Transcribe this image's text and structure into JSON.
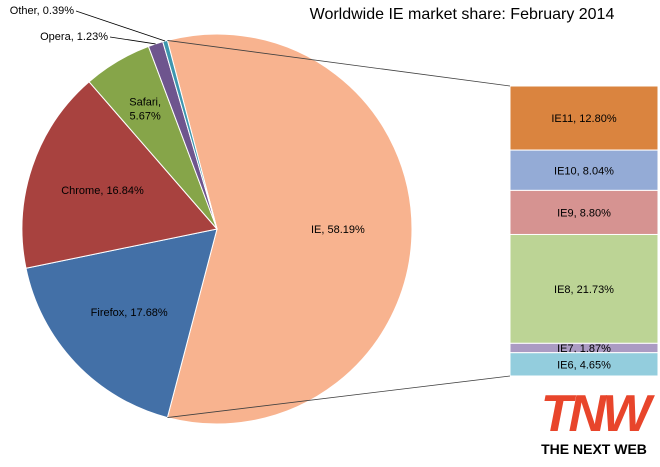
{
  "chart_data": {
    "type": "pie",
    "title": "Worldwide IE market share: February 2014",
    "slices": [
      {
        "label": "IE, 58.19%",
        "name": "IE",
        "value": 58.19,
        "color": "#F8B38F"
      },
      {
        "label": "Firefox, 17.68%",
        "name": "Firefox",
        "value": 17.68,
        "color": "#4370A7"
      },
      {
        "label": "Chrome, 16.84%",
        "name": "Chrome",
        "value": 16.84,
        "color": "#A8423F"
      },
      {
        "label": "Safari,\n5.67%",
        "name": "Safari",
        "value": 5.67,
        "color": "#86A549"
      },
      {
        "label": "Opera, 1.23%",
        "name": "Opera",
        "value": 1.23,
        "color": "#6E558E"
      },
      {
        "label": "Other, 0.39%",
        "name": "Other",
        "value": 0.39,
        "color": "#3D96AE"
      }
    ],
    "breakdown": {
      "of": "IE",
      "segments": [
        {
          "label": "IE11, 12.80%",
          "name": "IE11",
          "value": 12.8,
          "color": "#DA843F"
        },
        {
          "label": "IE10, 8.04%",
          "name": "IE10",
          "value": 8.04,
          "color": "#94ABD6"
        },
        {
          "label": "IE9, 8.80%",
          "name": "IE9",
          "value": 8.8,
          "color": "#D69391"
        },
        {
          "label": "IE8, 21.73%",
          "name": "IE8",
          "value": 21.73,
          "color": "#BCD495"
        },
        {
          "label": "IE7, 1.87%",
          "name": "IE7",
          "value": 1.87,
          "color": "#AB9BC3"
        },
        {
          "label": "IE6, 4.65%",
          "name": "IE6",
          "value": 4.65,
          "color": "#93CDDD"
        }
      ]
    }
  },
  "logo": {
    "mark": "TNW",
    "wordmark": "THE NEXT WEB",
    "color": "#E8452B"
  }
}
